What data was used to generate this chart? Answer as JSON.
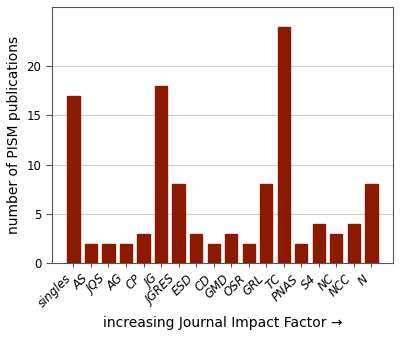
{
  "categories": [
    "singles",
    "AS",
    "JQS",
    "AG",
    "CP",
    "JG",
    "JGRES",
    "ESD",
    "CD",
    "GMD",
    "OSR",
    "GRL",
    "TC",
    "PNAS",
    "S4",
    "NC",
    "NCC",
    "N"
  ],
  "values": [
    17,
    2,
    2,
    2,
    3,
    18,
    8,
    3,
    2,
    3,
    2,
    8,
    24,
    2,
    4,
    3,
    4,
    8
  ],
  "bar_color": "#8B1A00",
  "xlabel": "increasing Journal Impact Factor →",
  "ylabel": "number of PISM publications",
  "ylim": [
    0,
    26
  ],
  "yticks": [
    0,
    5,
    10,
    15,
    20
  ],
  "grid_color": "#cccccc",
  "background_color": "#ffffff",
  "xlabel_fontsize": 10,
  "ylabel_fontsize": 10,
  "tick_fontsize": 8.5,
  "xtick_rotation": 45
}
